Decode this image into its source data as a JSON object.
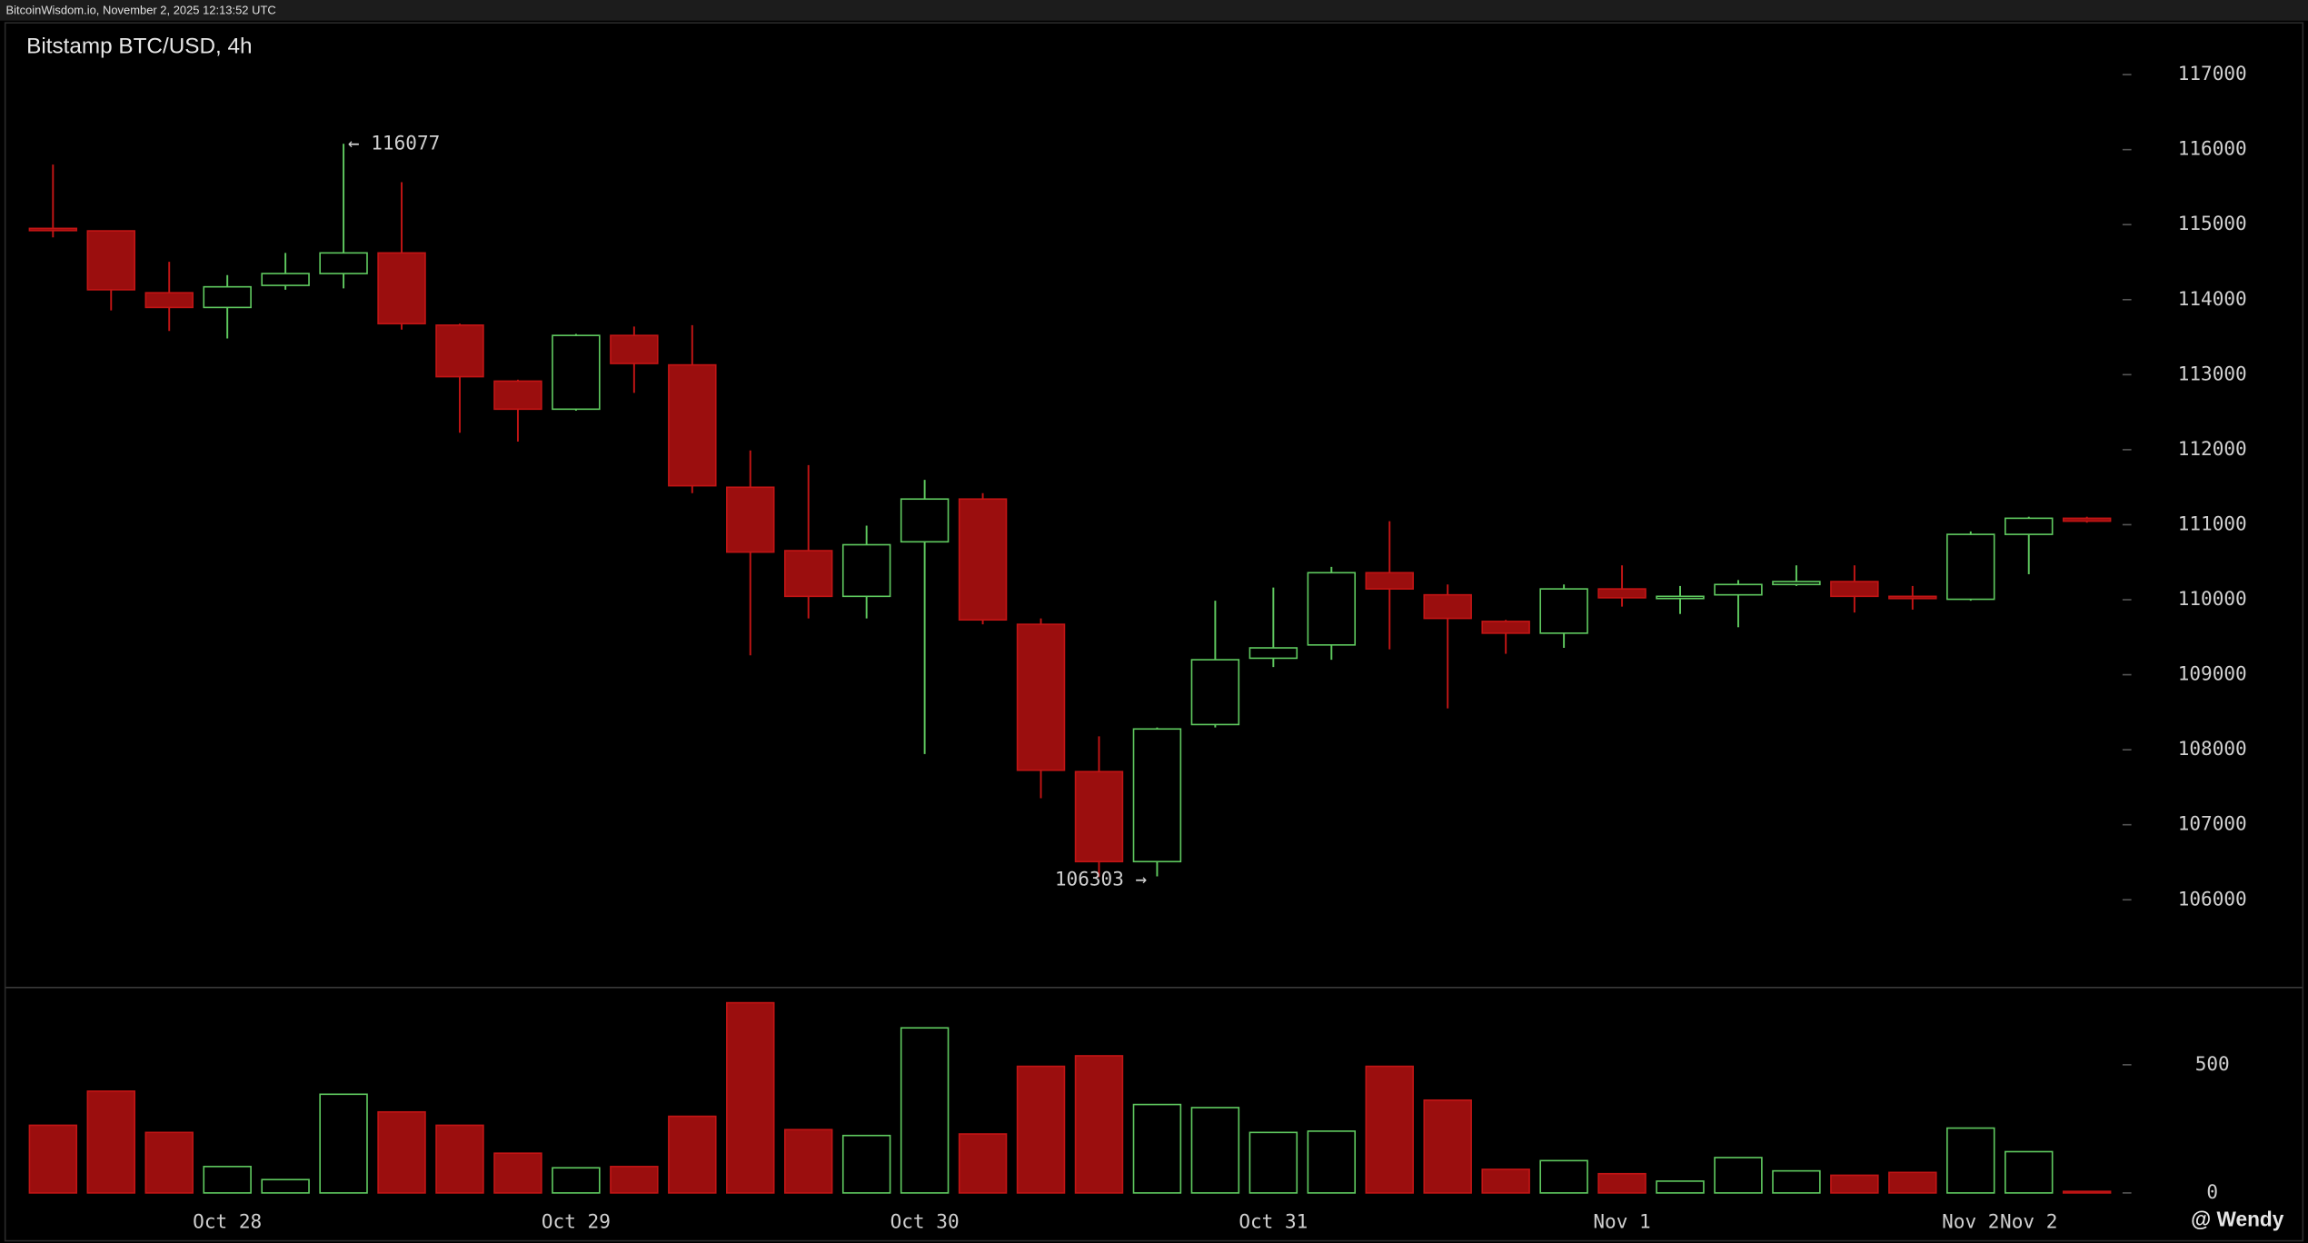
{
  "header": {
    "text": "BitcoinWisdom.io, November 2, 2025 12:13:52 UTC"
  },
  "watermark": "@ Wendy",
  "chart_data": {
    "type": "candlestick",
    "title": "Bitstamp BTC/USD, 4h",
    "categories": [
      null,
      null,
      null,
      "Oct 28",
      null,
      null,
      null,
      null,
      null,
      "Oct 29",
      null,
      null,
      null,
      null,
      null,
      "Oct 30",
      null,
      null,
      null,
      null,
      null,
      "Oct 31",
      null,
      null,
      null,
      null,
      null,
      "Nov 1",
      null,
      null,
      null,
      null,
      null,
      "Nov 2",
      "Nov 2",
      null
    ],
    "open": [
      114950,
      114917,
      114092,
      113896,
      114190,
      114348,
      114623,
      113660,
      112914,
      112540,
      113523,
      113130,
      111499,
      110654,
      110045,
      110772,
      111342,
      109672,
      107708,
      106509,
      108336,
      109220,
      109397,
      110360,
      110065,
      109711,
      109554,
      110144,
      110026,
      110065,
      110203,
      110242,
      110045,
      110006,
      110871,
      111086
    ],
    "high": [
      115800,
      114917,
      114505,
      114328,
      114623,
      116077,
      115566,
      113680,
      112933,
      113543,
      113641,
      113660,
      111990,
      111794,
      110988,
      111597,
      111420,
      109750,
      108179,
      108297,
      109986,
      110163,
      110438,
      111047,
      110203,
      109731,
      110203,
      110458,
      110183,
      110262,
      110458,
      110458,
      110183,
      110910,
      111106,
      111106
    ],
    "low": [
      114830,
      113857,
      113582,
      113483,
      114132,
      114151,
      113601,
      112226,
      112108,
      112520,
      112757,
      111420,
      109259,
      109750,
      109750,
      107943,
      109672,
      107354,
      106303,
      106312,
      108297,
      109102,
      109200,
      109338,
      108552,
      109279,
      109358,
      109908,
      109810,
      109633,
      110183,
      109829,
      109868,
      109986,
      110340,
      111027
    ],
    "close": [
      114930,
      114132,
      113896,
      114171,
      114348,
      114623,
      113680,
      112973,
      112540,
      113523,
      113149,
      111519,
      110635,
      110045,
      110733,
      111342,
      109731,
      107727,
      106509,
      108277,
      109200,
      109358,
      110360,
      110144,
      109751,
      109554,
      110144,
      110026,
      110045,
      110203,
      110242,
      110045,
      110026,
      110871,
      111086,
      111047
    ],
    "volume": [
      264,
      397,
      236,
      103,
      52,
      385,
      316,
      264,
      155,
      98,
      103,
      299,
      742,
      247,
      224,
      644,
      230,
      494,
      535,
      345,
      333,
      236,
      241,
      494,
      362,
      92,
      126,
      75,
      46,
      138,
      86,
      69,
      80,
      253,
      161,
      6
    ],
    "up_color": "#5fc95f",
    "down_color": "#9b0e0e",
    "ylim": [
      104880,
      117700
    ],
    "yticks": [
      106000,
      107000,
      108000,
      109000,
      110000,
      111000,
      112000,
      113000,
      114000,
      115000,
      116000,
      117000
    ],
    "volume_ylim": [
      0,
      793
    ],
    "volume_yticks": [
      0,
      500
    ],
    "annotations": [
      {
        "text": "← 116077"
      },
      {
        "text": "106303 →"
      }
    ]
  }
}
